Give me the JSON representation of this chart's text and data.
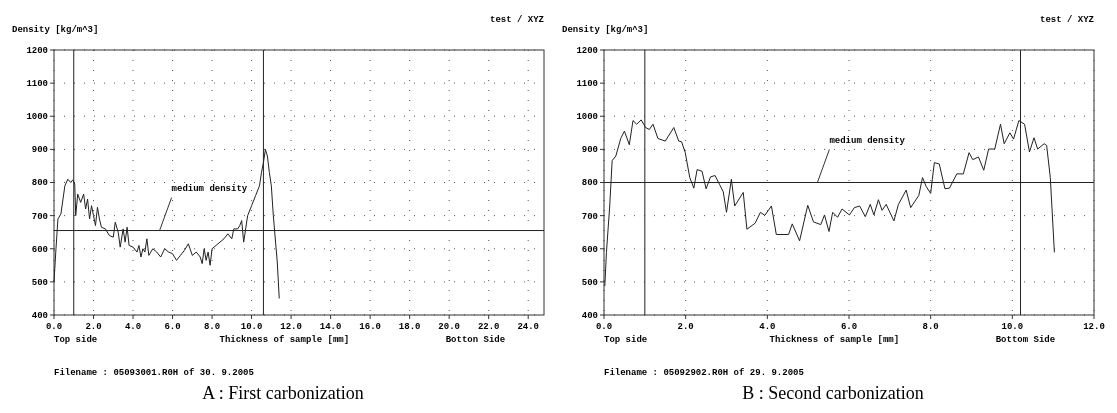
{
  "chart_data": [
    {
      "type": "line",
      "title": "A : First carbonization",
      "ylabel": "Density [kg/m^3]",
      "xlabel": "Thickness of sample [mm]",
      "annotations": [
        "test / XYZ",
        "Top side",
        "Botton Side",
        "Filename : 05093001.R0H of 30. 9.2005"
      ],
      "xlim": [
        0,
        24.8
      ],
      "xticks": [
        {
          "value": 0,
          "label": "0.0"
        },
        {
          "value": 2,
          "label": "2.0"
        },
        {
          "value": 4,
          "label": "4.0"
        },
        {
          "value": 6,
          "label": "6.0"
        },
        {
          "value": 8,
          "label": "8.0"
        },
        {
          "value": 10,
          "label": "10.0"
        },
        {
          "value": 12,
          "label": "12.0"
        },
        {
          "value": 14,
          "label": "14.0"
        },
        {
          "value": 16,
          "label": "16.0"
        },
        {
          "value": 18,
          "label": "18.0"
        },
        {
          "value": 20,
          "label": "20.0"
        },
        {
          "value": 22,
          "label": "22.0"
        },
        {
          "value": 24,
          "label": "24.0"
        }
      ],
      "ylim": [
        400,
        1200
      ],
      "yticks": [
        400,
        500,
        600,
        700,
        800,
        900,
        1000,
        1100,
        1200
      ],
      "grid": true,
      "line_style": "solid",
      "ref_lines": [
        {
          "axis": "y",
          "value": 655,
          "label": "medium density",
          "color": "#222222"
        },
        {
          "axis": "x",
          "value": 1.0,
          "color": "#222222"
        },
        {
          "axis": "x",
          "value": 10.6,
          "color": "#222222"
        }
      ],
      "series": [
        {
          "color": "#222222",
          "x": [
            0,
            0.1,
            0.2,
            0.35,
            0.55,
            0.7,
            0.85,
            0.95,
            1.05,
            1.1,
            1.2,
            1.35,
            1.5,
            1.6,
            1.7,
            1.8,
            1.9,
            2.0,
            2.1,
            2.2,
            2.3,
            2.4,
            2.6,
            2.8,
            3.0,
            3.1,
            3.25,
            3.35,
            3.5,
            3.6,
            3.7,
            3.8,
            4.0,
            4.2,
            4.3,
            4.4,
            4.5,
            4.6,
            4.7,
            4.8,
            5.0,
            5.2,
            5.4,
            5.6,
            5.8,
            6.0,
            6.2,
            6.4,
            6.6,
            6.8,
            7.0,
            7.2,
            7.4,
            7.5,
            7.6,
            7.7,
            7.8,
            7.9,
            8.0,
            8.2,
            8.4,
            8.6,
            8.8,
            9.0,
            9.1,
            9.3,
            9.4,
            9.5,
            9.6,
            9.8,
            10.0,
            10.2,
            10.4,
            10.5,
            10.6,
            10.7,
            10.8,
            10.9,
            11.0,
            11.1,
            11.3,
            11.4
          ],
          "values": [
            500,
            600,
            690,
            705,
            790,
            810,
            800,
            808,
            795,
            700,
            765,
            740,
            765,
            720,
            750,
            690,
            730,
            700,
            670,
            725,
            690,
            665,
            660,
            640,
            635,
            680,
            650,
            605,
            660,
            620,
            665,
            610,
            605,
            590,
            610,
            575,
            600,
            590,
            630,
            580,
            600,
            590,
            575,
            600,
            590,
            585,
            565,
            580,
            595,
            615,
            580,
            590,
            575,
            555,
            600,
            565,
            590,
            550,
            600,
            610,
            620,
            630,
            645,
            630,
            660,
            660,
            670,
            685,
            620,
            700,
            730,
            760,
            790,
            830,
            860,
            900,
            880,
            830,
            790,
            700,
            560,
            450
          ]
        }
      ]
    },
    {
      "type": "line",
      "title": "B : Second carbonization",
      "ylabel": "Density [kg/m^3]",
      "xlabel": "Thickness of sample [mm]",
      "annotations": [
        "test / XYZ",
        "Top side",
        "Bottom Side",
        "Filename : 05092902.R0H of 29. 9.2005"
      ],
      "xlim": [
        0,
        12
      ],
      "xticks": [
        {
          "value": 0,
          "label": "0.0"
        },
        {
          "value": 2,
          "label": "2.0"
        },
        {
          "value": 4,
          "label": "4.0"
        },
        {
          "value": 6,
          "label": "6.0"
        },
        {
          "value": 8,
          "label": "8.0"
        },
        {
          "value": 10,
          "label": "10.0"
        },
        {
          "value": 12,
          "label": "12.0"
        }
      ],
      "ylim": [
        400,
        1200
      ],
      "yticks": [
        400,
        500,
        600,
        700,
        800,
        900,
        1000,
        1100,
        1200
      ],
      "grid": true,
      "line_style": "solid",
      "ref_lines": [
        {
          "axis": "y",
          "value": 800,
          "label": "medium density",
          "color": "#222222"
        },
        {
          "axis": "x",
          "value": 1.0,
          "color": "#222222"
        },
        {
          "axis": "x",
          "value": 10.2,
          "color": "#222222"
        }
      ],
      "series": [
        {
          "color": "#222222",
          "x": [
            0.02,
            0.06,
            0.14,
            0.2,
            0.29,
            0.41,
            0.5,
            0.62,
            0.71,
            0.8,
            0.91,
            1.02,
            1.11,
            1.2,
            1.32,
            1.5,
            1.71,
            1.83,
            1.9,
            1.99,
            2.1,
            2.2,
            2.28,
            2.4,
            2.5,
            2.61,
            2.72,
            2.83,
            2.92,
            3.0,
            3.12,
            3.2,
            3.41,
            3.5,
            3.7,
            3.83,
            3.94,
            4.1,
            4.22,
            4.52,
            4.61,
            4.79,
            4.99,
            5.13,
            5.31,
            5.4,
            5.51,
            5.6,
            5.72,
            5.83,
            6.01,
            6.13,
            6.26,
            6.4,
            6.52,
            6.61,
            6.72,
            6.81,
            6.91,
            7.1,
            7.21,
            7.4,
            7.51,
            7.71,
            7.8,
            7.89,
            8.0,
            8.09,
            8.21,
            8.35,
            8.46,
            8.64,
            8.8,
            8.94,
            9.03,
            9.17,
            9.3,
            9.42,
            9.57,
            9.71,
            9.8,
            9.94,
            10.03,
            10.16,
            10.3,
            10.42,
            10.53,
            10.62,
            10.78,
            10.84,
            10.93,
            11.03
          ],
          "values": [
            487,
            589,
            729,
            866,
            880,
            933,
            955,
            914,
            987,
            976,
            989,
            966,
            960,
            976,
            933,
            925,
            966,
            925,
            923,
            890,
            815,
            783,
            839,
            834,
            781,
            817,
            821,
            794,
            772,
            710,
            810,
            729,
            770,
            659,
            677,
            710,
            701,
            729,
            643,
            643,
            675,
            624,
            731,
            681,
            673,
            702,
            652,
            710,
            695,
            720,
            702,
            724,
            729,
            697,
            734,
            702,
            748,
            716,
            734,
            684,
            734,
            777,
            724,
            761,
            815,
            788,
            767,
            860,
            856,
            781,
            783,
            826,
            826,
            890,
            869,
            877,
            837,
            901,
            901,
            976,
            917,
            950,
            931,
            987,
            976,
            892,
            935,
            901,
            917,
            912,
            815,
            589
          ]
        }
      ]
    }
  ]
}
